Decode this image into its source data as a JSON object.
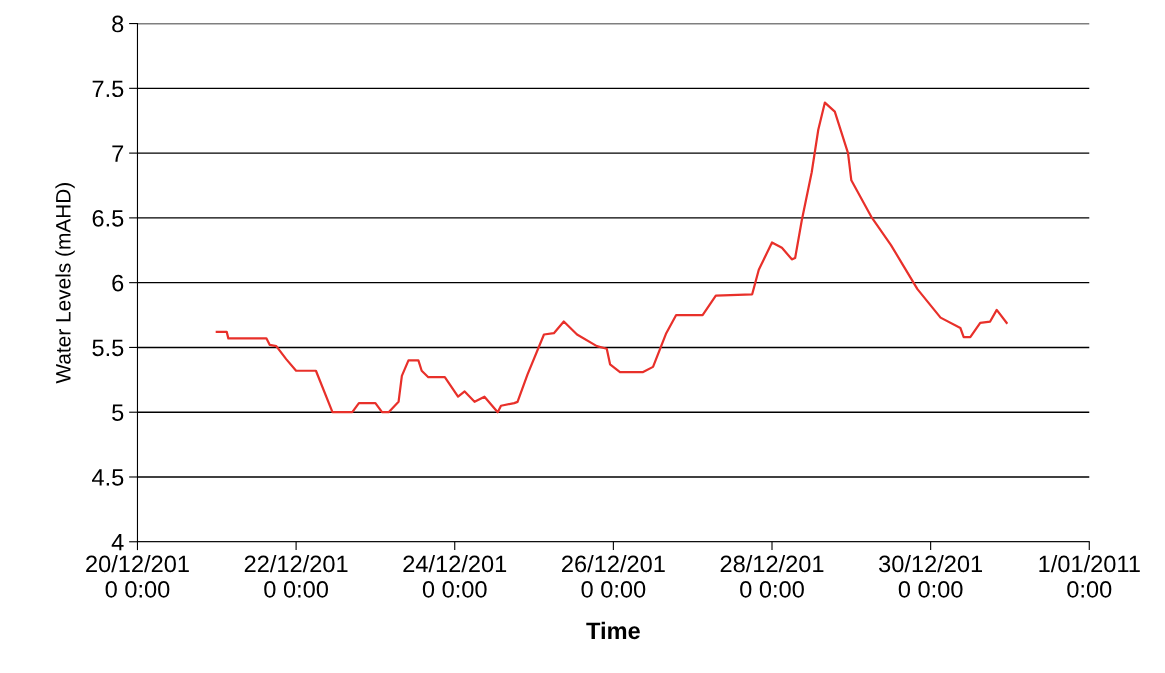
{
  "chart_data": {
    "type": "line",
    "xlabel": "Time",
    "ylabel": "Water Levels (mAHD)",
    "x": [
      "2010-12-21T00:00",
      "2010-12-21T03:00",
      "2010-12-21T03:30",
      "2010-12-21T15:00",
      "2010-12-21T16:00",
      "2010-12-21T18:00",
      "2010-12-21T21:00",
      "2010-12-22T00:00",
      "2010-12-22T06:00",
      "2010-12-22T11:00",
      "2010-12-22T17:00",
      "2010-12-22T19:00",
      "2010-12-23T00:00",
      "2010-12-23T02:00",
      "2010-12-23T04:00",
      "2010-12-23T07:00",
      "2010-12-23T08:00",
      "2010-12-23T10:00",
      "2010-12-23T13:00",
      "2010-12-23T14:00",
      "2010-12-23T16:00",
      "2010-12-23T21:00",
      "2010-12-24T01:00",
      "2010-12-24T03:00",
      "2010-12-24T06:00",
      "2010-12-24T09:00",
      "2010-12-24T13:00",
      "2010-12-24T14:00",
      "2010-12-24T18:00",
      "2010-12-24T19:00",
      "2010-12-24T22:00",
      "2010-12-25T03:00",
      "2010-12-25T06:00",
      "2010-12-25T09:00",
      "2010-12-25T13:00",
      "2010-12-25T19:00",
      "2010-12-25T22:00",
      "2010-12-25T23:00",
      "2010-12-26T02:00",
      "2010-12-26T09:00",
      "2010-12-26T12:00",
      "2010-12-26T16:00",
      "2010-12-26T19:00",
      "2010-12-27T03:00",
      "2010-12-27T07:00",
      "2010-12-27T18:00",
      "2010-12-27T20:00",
      "2010-12-28T00:00",
      "2010-12-28T03:00",
      "2010-12-28T06:00",
      "2010-12-28T07:00",
      "2010-12-28T09:00",
      "2010-12-28T12:00",
      "2010-12-28T14:00",
      "2010-12-28T16:00",
      "2010-12-28T19:00",
      "2010-12-28T23:00",
      "2010-12-29T00:00",
      "2010-12-29T06:00",
      "2010-12-29T12:00",
      "2010-12-29T16:00",
      "2010-12-29T20:00",
      "2010-12-30T03:00",
      "2010-12-30T09:00",
      "2010-12-30T10:00",
      "2010-12-30T12:00",
      "2010-12-30T15:00",
      "2010-12-30T18:00",
      "2010-12-30T20:00",
      "2010-12-30T23:00"
    ],
    "series": [
      {
        "color": "#e8302a",
        "values": [
          5.62,
          5.62,
          5.57,
          5.57,
          5.52,
          5.51,
          5.41,
          5.32,
          5.32,
          5.0,
          5.0,
          5.07,
          5.07,
          5.0,
          5.0,
          5.08,
          5.28,
          5.4,
          5.4,
          5.32,
          5.27,
          5.27,
          5.12,
          5.16,
          5.08,
          5.12,
          5.0,
          5.05,
          5.07,
          5.08,
          5.29,
          5.6,
          5.61,
          5.7,
          5.6,
          5.51,
          5.49,
          5.37,
          5.31,
          5.31,
          5.35,
          5.61,
          5.75,
          5.75,
          5.9,
          5.91,
          6.1,
          6.31,
          6.27,
          6.18,
          6.19,
          6.48,
          6.85,
          7.18,
          7.39,
          7.32,
          7.0,
          6.79,
          6.51,
          6.29,
          6.12,
          5.95,
          5.73,
          5.65,
          5.58,
          5.58,
          5.69,
          5.7,
          5.79,
          5.69
        ]
      }
    ],
    "xlim": [
      "2010-12-20",
      "2011-01-01"
    ],
    "xticks": [
      {
        "value": "2010-12-20",
        "label": "20/12/201\n0 0:00"
      },
      {
        "value": "2010-12-22",
        "label": "22/12/201\n0 0:00"
      },
      {
        "value": "2010-12-24",
        "label": "24/12/201\n0 0:00"
      },
      {
        "value": "2010-12-26",
        "label": "26/12/201\n0 0:00"
      },
      {
        "value": "2010-12-28",
        "label": "28/12/201\n0 0:00"
      },
      {
        "value": "2010-12-30",
        "label": "30/12/201\n0 0:00"
      },
      {
        "value": "2011-01-01",
        "label": "1/01/2011\n0:00"
      }
    ],
    "ylim": [
      4,
      8
    ],
    "yticks": [
      4,
      4.5,
      5,
      5.5,
      6,
      6.5,
      7,
      7.5,
      8
    ],
    "grid": "y",
    "legend": false,
    "marker": "none",
    "line_style": "solid"
  }
}
